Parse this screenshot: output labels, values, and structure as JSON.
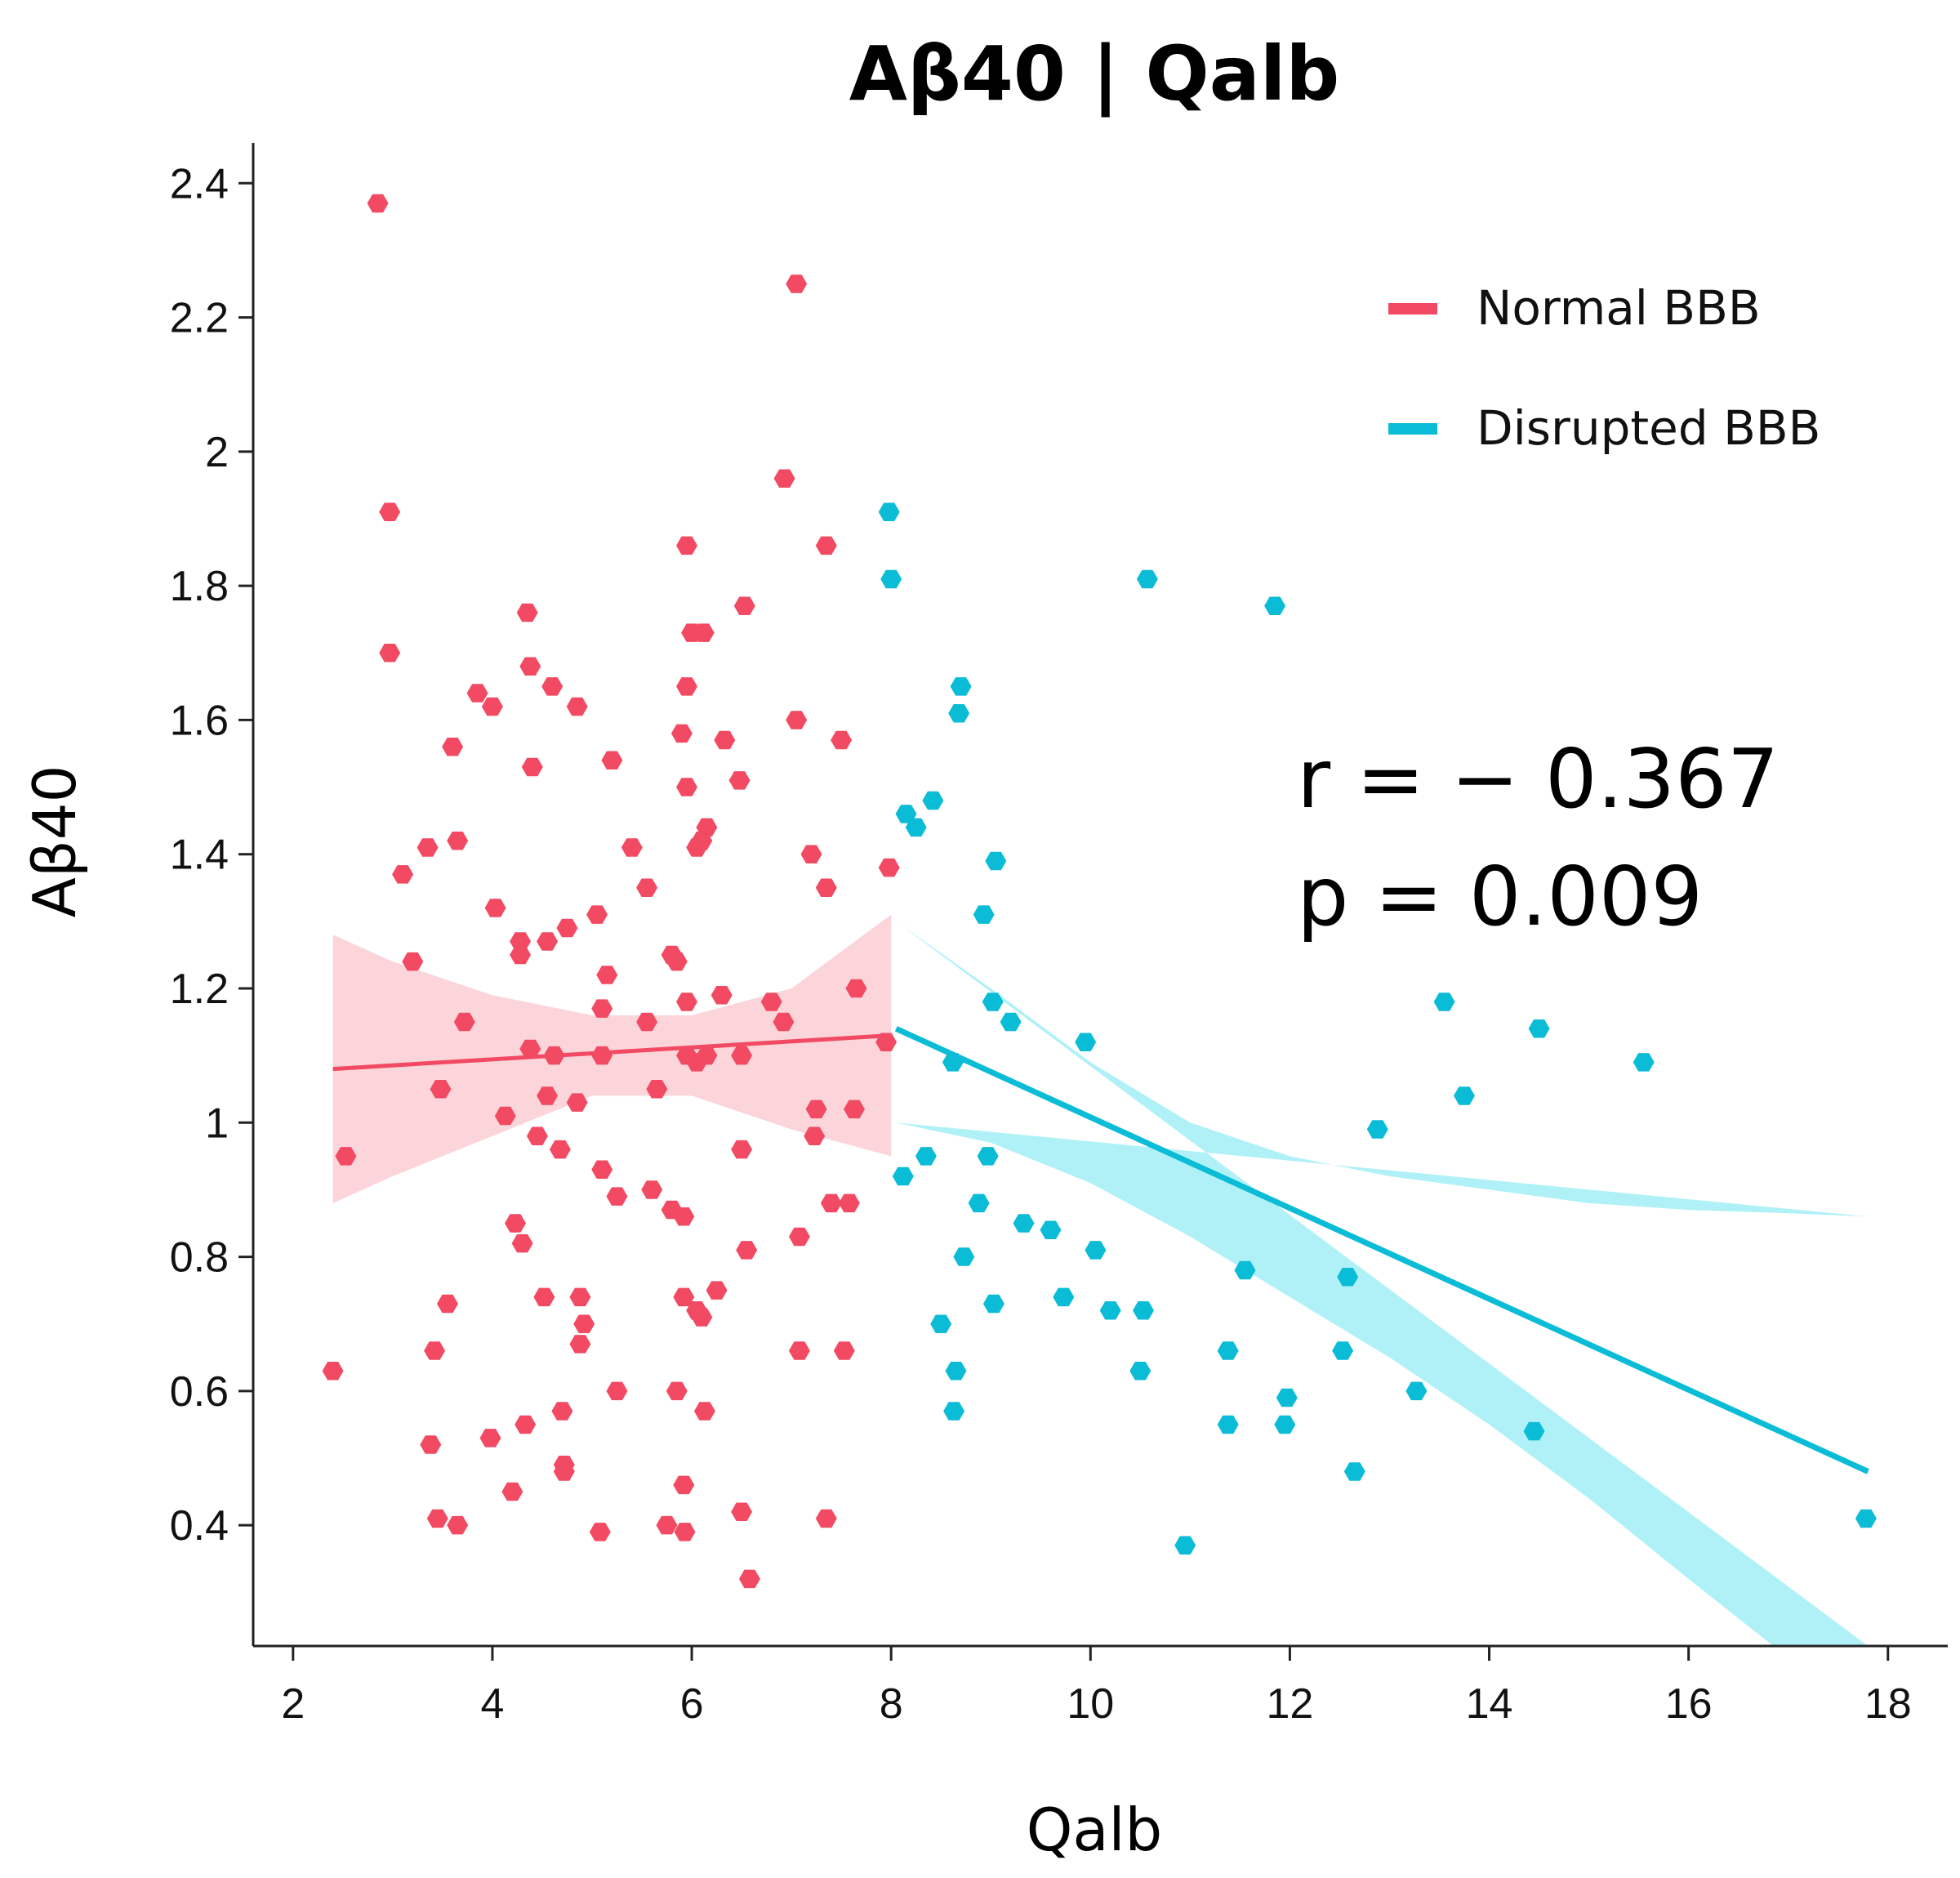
{
  "chart_data": {
    "type": "scatter",
    "title": "Aβ40 | Qalb",
    "xlabel": "Qalb",
    "ylabel": "Aβ40",
    "xlim": [
      1.6,
      18.6
    ],
    "ylim": [
      0.22,
      2.46
    ],
    "x_ticks": [
      2,
      4,
      6,
      8,
      10,
      12,
      14,
      16,
      18
    ],
    "x_tick_labels": [
      "2",
      "4",
      "6",
      "8",
      "10",
      "12",
      "14",
      "16",
      "18"
    ],
    "y_ticks": [
      0.4,
      0.6,
      0.8,
      1.0,
      1.2,
      1.4,
      1.6,
      1.8,
      2.0,
      2.2,
      2.4
    ],
    "y_tick_labels": [
      "0.4",
      "0.6",
      "0.8",
      "1",
      "1.2",
      "1.4",
      "1.6",
      "1.8",
      "2",
      "2.2",
      "2.4"
    ],
    "legend_position": "top-right",
    "annotations": [
      {
        "text": "r = − 0.367"
      },
      {
        "text": "p = 0.009"
      }
    ],
    "series": [
      {
        "name": "Normal BBB",
        "color": "#f24a63",
        "band_color": "#fbd5da",
        "fit": {
          "x": [
            2.4,
            8.0
          ],
          "y": [
            1.08,
            1.13
          ]
        },
        "ci_upper": [
          [
            2.4,
            1.28
          ],
          [
            3.0,
            1.24
          ],
          [
            4.0,
            1.19
          ],
          [
            5.0,
            1.16
          ],
          [
            6.0,
            1.16
          ],
          [
            7.0,
            1.2
          ],
          [
            8.0,
            1.31
          ]
        ],
        "ci_lower": [
          [
            2.4,
            0.88
          ],
          [
            3.0,
            0.92
          ],
          [
            4.0,
            0.98
          ],
          [
            5.0,
            1.04
          ],
          [
            6.0,
            1.04
          ],
          [
            7.0,
            0.99
          ],
          [
            8.0,
            0.95
          ]
        ],
        "points": [
          [
            2.85,
            2.37
          ],
          [
            7.05,
            2.25
          ],
          [
            2.97,
            1.91
          ],
          [
            6.93,
            1.96
          ],
          [
            2.97,
            1.7
          ],
          [
            7.35,
            1.86
          ],
          [
            5.95,
            1.86
          ],
          [
            4.35,
            1.76
          ],
          [
            6.0,
            1.73
          ],
          [
            6.12,
            1.73
          ],
          [
            6.53,
            1.77
          ],
          [
            4.38,
            1.68
          ],
          [
            3.85,
            1.64
          ],
          [
            4.0,
            1.62
          ],
          [
            4.6,
            1.65
          ],
          [
            4.85,
            1.62
          ],
          [
            5.95,
            1.65
          ],
          [
            7.05,
            1.6
          ],
          [
            7.5,
            1.57
          ],
          [
            5.9,
            1.58
          ],
          [
            6.33,
            1.57
          ],
          [
            3.6,
            1.56
          ],
          [
            4.4,
            1.53
          ],
          [
            5.2,
            1.54
          ],
          [
            5.95,
            1.5
          ],
          [
            6.48,
            1.51
          ],
          [
            3.65,
            1.42
          ],
          [
            3.35,
            1.41
          ],
          [
            5.4,
            1.41
          ],
          [
            6.05,
            1.41
          ],
          [
            6.15,
            1.44
          ],
          [
            6.1,
            1.42
          ],
          [
            7.2,
            1.4
          ],
          [
            3.1,
            1.37
          ],
          [
            7.98,
            1.38
          ],
          [
            5.55,
            1.35
          ],
          [
            7.35,
            1.35
          ],
          [
            4.03,
            1.32
          ],
          [
            5.05,
            1.31
          ],
          [
            4.75,
            1.29
          ],
          [
            4.55,
            1.27
          ],
          [
            4.28,
            1.27
          ],
          [
            4.28,
            1.25
          ],
          [
            5.85,
            1.24
          ],
          [
            5.8,
            1.25
          ],
          [
            3.2,
            1.24
          ],
          [
            5.15,
            1.22
          ],
          [
            6.3,
            1.19
          ],
          [
            6.8,
            1.18
          ],
          [
            5.95,
            1.18
          ],
          [
            7.65,
            1.2
          ],
          [
            3.72,
            1.15
          ],
          [
            5.1,
            1.17
          ],
          [
            5.55,
            1.15
          ],
          [
            6.92,
            1.15
          ],
          [
            4.38,
            1.11
          ],
          [
            6.15,
            1.1
          ],
          [
            6.05,
            1.09
          ],
          [
            5.95,
            1.1
          ],
          [
            6.5,
            1.1
          ],
          [
            4.62,
            1.1
          ],
          [
            5.1,
            1.1
          ],
          [
            7.95,
            1.12
          ],
          [
            3.48,
            1.05
          ],
          [
            5.65,
            1.05
          ],
          [
            4.55,
            1.04
          ],
          [
            4.85,
            1.03
          ],
          [
            4.13,
            1.01
          ],
          [
            7.25,
            1.02
          ],
          [
            7.63,
            1.02
          ],
          [
            4.45,
            0.98
          ],
          [
            7.23,
            0.98
          ],
          [
            4.68,
            0.96
          ],
          [
            6.5,
            0.96
          ],
          [
            2.53,
            0.95
          ],
          [
            5.1,
            0.93
          ],
          [
            5.6,
            0.9
          ],
          [
            5.25,
            0.89
          ],
          [
            5.8,
            0.87
          ],
          [
            5.92,
            0.86
          ],
          [
            7.4,
            0.88
          ],
          [
            7.58,
            0.88
          ],
          [
            4.23,
            0.85
          ],
          [
            4.3,
            0.82
          ],
          [
            7.08,
            0.83
          ],
          [
            6.55,
            0.81
          ],
          [
            6.25,
            0.75
          ],
          [
            4.88,
            0.74
          ],
          [
            5.92,
            0.74
          ],
          [
            3.55,
            0.73
          ],
          [
            4.52,
            0.74
          ],
          [
            6.05,
            0.72
          ],
          [
            6.1,
            0.71
          ],
          [
            4.92,
            0.7
          ],
          [
            4.88,
            0.67
          ],
          [
            3.42,
            0.66
          ],
          [
            7.08,
            0.66
          ],
          [
            7.53,
            0.66
          ],
          [
            2.4,
            0.63
          ],
          [
            5.85,
            0.6
          ],
          [
            5.25,
            0.6
          ],
          [
            4.7,
            0.57
          ],
          [
            6.13,
            0.57
          ],
          [
            4.33,
            0.55
          ],
          [
            3.98,
            0.53
          ],
          [
            3.38,
            0.52
          ],
          [
            4.72,
            0.49
          ],
          [
            4.72,
            0.48
          ],
          [
            5.92,
            0.46
          ],
          [
            4.2,
            0.45
          ],
          [
            6.5,
            0.42
          ],
          [
            7.35,
            0.41
          ],
          [
            3.45,
            0.41
          ],
          [
            3.65,
            0.4
          ],
          [
            5.75,
            0.4
          ],
          [
            5.08,
            0.39
          ],
          [
            5.93,
            0.39
          ],
          [
            6.58,
            0.32
          ]
        ]
      },
      {
        "name": "Disrupted BBB",
        "color": "#0bbcd6",
        "band_color": "#b0f1f8",
        "fit": {
          "x": [
            8.05,
            17.8
          ],
          "y": [
            1.14,
            0.48
          ]
        },
        "ci_upper": [
          [
            8.05,
            1.3
          ],
          [
            9.0,
            1.2
          ],
          [
            10.0,
            1.09
          ],
          [
            11.0,
            1.0
          ],
          [
            12.0,
            0.95
          ],
          [
            13.0,
            0.92
          ],
          [
            14.0,
            0.9
          ],
          [
            15.0,
            0.88
          ],
          [
            16.0,
            0.87
          ],
          [
            17.0,
            0.865
          ],
          [
            17.8,
            0.86
          ]
        ],
        "ci_lower": [
          [
            17.8,
            0.22
          ],
          [
            16.85,
            0.22
          ],
          [
            16.0,
            0.32
          ],
          [
            15.0,
            0.44
          ],
          [
            14.0,
            0.55
          ],
          [
            13.0,
            0.65
          ],
          [
            12.0,
            0.74
          ],
          [
            11.0,
            0.83
          ],
          [
            10.0,
            0.91
          ],
          [
            9.0,
            0.97
          ],
          [
            8.05,
            1.0
          ]
        ],
        "points": [
          [
            7.98,
            1.91
          ],
          [
            8.0,
            1.81
          ],
          [
            10.57,
            1.81
          ],
          [
            11.85,
            1.77
          ],
          [
            8.7,
            1.65
          ],
          [
            8.68,
            1.61
          ],
          [
            8.42,
            1.48
          ],
          [
            8.15,
            1.46
          ],
          [
            8.25,
            1.44
          ],
          [
            9.05,
            1.39
          ],
          [
            8.93,
            1.31
          ],
          [
            13.55,
            1.18
          ],
          [
            9.02,
            1.18
          ],
          [
            9.2,
            1.15
          ],
          [
            9.95,
            1.12
          ],
          [
            14.5,
            1.14
          ],
          [
            8.62,
            1.09
          ],
          [
            15.55,
            1.09
          ],
          [
            13.75,
            1.04
          ],
          [
            12.88,
            0.99
          ],
          [
            8.35,
            0.95
          ],
          [
            8.97,
            0.95
          ],
          [
            8.12,
            0.92
          ],
          [
            8.88,
            0.88
          ],
          [
            9.33,
            0.85
          ],
          [
            9.6,
            0.84
          ],
          [
            8.73,
            0.8
          ],
          [
            10.05,
            0.81
          ],
          [
            11.55,
            0.78
          ],
          [
            12.58,
            0.77
          ],
          [
            9.73,
            0.74
          ],
          [
            9.03,
            0.73
          ],
          [
            10.2,
            0.72
          ],
          [
            10.53,
            0.72
          ],
          [
            8.5,
            0.7
          ],
          [
            11.38,
            0.66
          ],
          [
            12.53,
            0.66
          ],
          [
            8.65,
            0.63
          ],
          [
            10.5,
            0.63
          ],
          [
            13.27,
            0.6
          ],
          [
            11.97,
            0.59
          ],
          [
            8.63,
            0.57
          ],
          [
            11.38,
            0.55
          ],
          [
            11.95,
            0.55
          ],
          [
            14.45,
            0.54
          ],
          [
            12.65,
            0.48
          ],
          [
            17.78,
            0.41
          ],
          [
            10.95,
            0.37
          ]
        ]
      }
    ]
  }
}
